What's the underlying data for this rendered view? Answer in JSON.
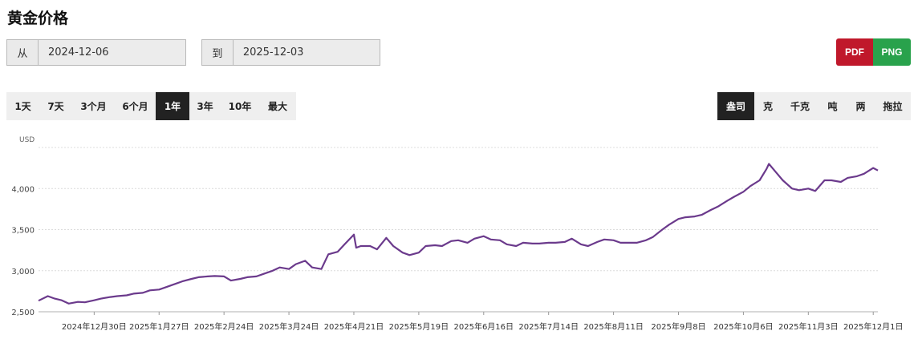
{
  "title": "黄金价格",
  "date_range": {
    "from_label": "从",
    "from_value": "2024-12-06",
    "to_label": "到",
    "to_value": "2025-12-03"
  },
  "export": {
    "pdf_label": "PDF",
    "png_label": "PNG",
    "pdf_color": "#c0182b",
    "png_color": "#29a24c"
  },
  "range_tabs": [
    {
      "label": "1天",
      "active": false
    },
    {
      "label": "7天",
      "active": false
    },
    {
      "label": "3个月",
      "active": false
    },
    {
      "label": "6个月",
      "active": false
    },
    {
      "label": "1年",
      "active": true
    },
    {
      "label": "3年",
      "active": false
    },
    {
      "label": "10年",
      "active": false
    },
    {
      "label": "最大",
      "active": false
    }
  ],
  "unit_tabs": [
    {
      "label": "盎司",
      "active": true
    },
    {
      "label": "克",
      "active": false
    },
    {
      "label": "千克",
      "active": false
    },
    {
      "label": "吨",
      "active": false
    },
    {
      "label": "两",
      "active": false
    },
    {
      "label": "拖拉",
      "active": false
    }
  ],
  "chart_data": {
    "type": "line",
    "unit_label": "USD",
    "line_color": "#6b3a8c",
    "grid": true,
    "ylim": [
      2500,
      4500
    ],
    "y_ticks": [
      2500,
      3000,
      3500,
      4000
    ],
    "y_tick_labels": [
      "2,500",
      "3,000",
      "3,500",
      "4,000"
    ],
    "x_tick_labels": [
      "2024年12月30日",
      "2025年1月27日",
      "2025年2月24日",
      "2025年3月24日",
      "2025年4月21日",
      "2025年5月19日",
      "2025年6月16日",
      "2025年7月14日",
      "2025年8月11日",
      "2025年9月8日",
      "2025年10月6日",
      "2025年11月3日",
      "2025年12月1日"
    ],
    "x_range": [
      "2024-12-06",
      "2025-12-03"
    ],
    "x": [
      "2024-12-06",
      "2024-12-10",
      "2024-12-13",
      "2024-12-16",
      "2024-12-19",
      "2024-12-23",
      "2024-12-26",
      "2024-12-30",
      "2025-01-02",
      "2025-01-06",
      "2025-01-09",
      "2025-01-13",
      "2025-01-16",
      "2025-01-20",
      "2025-01-23",
      "2025-01-27",
      "2025-01-30",
      "2025-02-03",
      "2025-02-06",
      "2025-02-10",
      "2025-02-13",
      "2025-02-17",
      "2025-02-20",
      "2025-02-24",
      "2025-02-27",
      "2025-03-03",
      "2025-03-06",
      "2025-03-10",
      "2025-03-13",
      "2025-03-17",
      "2025-03-20",
      "2025-03-24",
      "2025-03-27",
      "2025-03-31",
      "2025-04-03",
      "2025-04-07",
      "2025-04-10",
      "2025-04-14",
      "2025-04-17",
      "2025-04-21",
      "2025-04-22",
      "2025-04-24",
      "2025-04-28",
      "2025-05-01",
      "2025-05-05",
      "2025-05-08",
      "2025-05-12",
      "2025-05-15",
      "2025-05-19",
      "2025-05-22",
      "2025-05-26",
      "2025-05-29",
      "2025-06-02",
      "2025-06-05",
      "2025-06-09",
      "2025-06-12",
      "2025-06-16",
      "2025-06-19",
      "2025-06-23",
      "2025-06-26",
      "2025-06-30",
      "2025-07-03",
      "2025-07-07",
      "2025-07-10",
      "2025-07-14",
      "2025-07-17",
      "2025-07-21",
      "2025-07-24",
      "2025-07-28",
      "2025-07-31",
      "2025-08-04",
      "2025-08-07",
      "2025-08-11",
      "2025-08-14",
      "2025-08-18",
      "2025-08-21",
      "2025-08-25",
      "2025-08-28",
      "2025-09-01",
      "2025-09-04",
      "2025-09-08",
      "2025-09-11",
      "2025-09-15",
      "2025-09-18",
      "2025-09-22",
      "2025-09-25",
      "2025-09-29",
      "2025-10-02",
      "2025-10-06",
      "2025-10-09",
      "2025-10-13",
      "2025-10-16",
      "2025-10-17",
      "2025-10-20",
      "2025-10-23",
      "2025-10-27",
      "2025-10-30",
      "2025-11-03",
      "2025-11-06",
      "2025-11-10",
      "2025-11-13",
      "2025-11-17",
      "2025-11-20",
      "2025-11-24",
      "2025-11-27",
      "2025-12-01",
      "2025-12-03"
    ],
    "y": [
      2635,
      2690,
      2660,
      2640,
      2600,
      2620,
      2615,
      2640,
      2660,
      2680,
      2690,
      2700,
      2720,
      2730,
      2760,
      2770,
      2800,
      2840,
      2870,
      2900,
      2920,
      2930,
      2935,
      2930,
      2880,
      2900,
      2920,
      2930,
      2960,
      3000,
      3040,
      3020,
      3080,
      3120,
      3040,
      3020,
      3200,
      3230,
      3320,
      3440,
      3280,
      3300,
      3300,
      3260,
      3400,
      3300,
      3220,
      3190,
      3220,
      3300,
      3310,
      3300,
      3360,
      3370,
      3340,
      3390,
      3420,
      3380,
      3370,
      3320,
      3300,
      3340,
      3330,
      3330,
      3340,
      3340,
      3350,
      3390,
      3320,
      3300,
      3350,
      3380,
      3370,
      3340,
      3340,
      3340,
      3370,
      3410,
      3500,
      3560,
      3630,
      3650,
      3660,
      3680,
      3740,
      3780,
      3850,
      3900,
      3960,
      4030,
      4100,
      4240,
      4300,
      4200,
      4100,
      4000,
      3980,
      4000,
      3970,
      4100,
      4100,
      4080,
      4130,
      4150,
      4180,
      4250,
      4220
    ]
  }
}
